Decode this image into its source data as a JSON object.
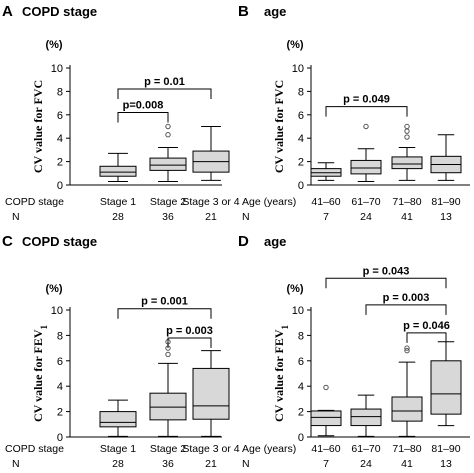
{
  "chart_data": [
    {
      "type": "box",
      "panel": "A",
      "title": "COPD stage",
      "unit": "(%)",
      "ylabel": "CV value for FVC",
      "ylim": [
        0,
        10
      ],
      "yticks": [
        0,
        2,
        4,
        6,
        8,
        10
      ],
      "row_labels": [
        "COPD stage",
        "N"
      ],
      "categories": [
        "Stage 1",
        "Stage  2",
        "Stage  3 or 4"
      ],
      "n": [
        "28",
        "36",
        "21"
      ],
      "boxes": [
        {
          "whislo": 0.3,
          "q1": 0.75,
          "med": 1.1,
          "q3": 1.6,
          "whishi": 2.7,
          "fliers": []
        },
        {
          "whislo": 0.3,
          "q1": 1.25,
          "med": 1.7,
          "q3": 2.3,
          "whishi": 3.2,
          "fliers": [
            4.3,
            5.0
          ]
        },
        {
          "whislo": 0.4,
          "q1": 1.1,
          "med": 2.0,
          "q3": 2.9,
          "whishi": 5.0,
          "fliers": []
        }
      ],
      "brackets": [
        {
          "from": 0,
          "to": 1,
          "value": 6.2,
          "label": "p=0.008"
        },
        {
          "from": 0,
          "to": 2,
          "value": 8.2,
          "label": "p = 0.01"
        }
      ]
    },
    {
      "type": "box",
      "panel": "B",
      "title": "age",
      "unit": "(%)",
      "ylabel": "CV value for FVC",
      "ylim": [
        0,
        10
      ],
      "yticks": [
        0,
        2,
        4,
        6,
        8,
        10
      ],
      "row_labels": [
        "Age (years)",
        "N"
      ],
      "categories": [
        "41–60",
        "61–70",
        "71–80",
        "81–90"
      ],
      "n": [
        "7",
        "24",
        "41",
        "13"
      ],
      "boxes": [
        {
          "whislo": 0.4,
          "q1": 0.75,
          "med": 1.05,
          "q3": 1.4,
          "whishi": 1.9,
          "fliers": []
        },
        {
          "whislo": 0.3,
          "q1": 0.95,
          "med": 1.45,
          "q3": 2.1,
          "whishi": 3.1,
          "fliers": [
            5.0
          ]
        },
        {
          "whislo": 0.4,
          "q1": 1.4,
          "med": 1.8,
          "q3": 2.4,
          "whishi": 3.2,
          "fliers": [
            4.1,
            4.6,
            5.0
          ]
        },
        {
          "whislo": 0.4,
          "q1": 1.05,
          "med": 1.75,
          "q3": 2.45,
          "whishi": 4.3,
          "fliers": []
        }
      ],
      "brackets": [
        {
          "from": 0,
          "to": 2,
          "value": 6.7,
          "label": "p = 0.049"
        }
      ]
    },
    {
      "type": "box",
      "panel": "C",
      "title": "COPD stage",
      "unit": "(%)",
      "ylabel": "CV value for FEV",
      "ylabel_sub": "1",
      "ylim": [
        0,
        10
      ],
      "yticks": [
        0,
        2,
        4,
        6,
        8,
        10
      ],
      "row_labels": [
        "COPD stage",
        "N"
      ],
      "categories": [
        "Stage 1",
        "Stage  2",
        "Stage  3 or 4"
      ],
      "n": [
        "28",
        "36",
        "21"
      ],
      "boxes": [
        {
          "whislo": 0.05,
          "q1": 0.8,
          "med": 1.15,
          "q3": 2.0,
          "whishi": 2.9,
          "fliers": []
        },
        {
          "whislo": 0.05,
          "q1": 1.35,
          "med": 2.35,
          "q3": 3.45,
          "whishi": 5.8,
          "fliers": [
            6.5,
            7.0,
            7.5
          ]
        },
        {
          "whislo": 0.05,
          "q1": 1.4,
          "med": 2.45,
          "q3": 5.4,
          "whishi": 6.8,
          "fliers": []
        }
      ],
      "brackets": [
        {
          "from": 1,
          "to": 2,
          "value": 7.8,
          "label": "p = 0.003"
        },
        {
          "from": 0,
          "to": 2,
          "value": 10.1,
          "label": "p = 0.001"
        }
      ]
    },
    {
      "type": "box",
      "panel": "D",
      "title": "age",
      "unit": "(%)",
      "ylabel": "CV value for FEV",
      "ylabel_sub": "1",
      "ylim": [
        0,
        10
      ],
      "yticks": [
        0,
        2,
        4,
        6,
        8,
        10
      ],
      "row_labels": [
        "Age (years)",
        "N"
      ],
      "categories": [
        "41–60",
        "61–70",
        "71–80",
        "81–90"
      ],
      "n": [
        "7",
        "24",
        "41",
        "13"
      ],
      "boxes": [
        {
          "whislo": 0.1,
          "q1": 0.9,
          "med": 1.55,
          "q3": 2.05,
          "whishi": 2.1,
          "fliers": [
            3.9
          ]
        },
        {
          "whislo": 0.05,
          "q1": 0.9,
          "med": 1.6,
          "q3": 2.2,
          "whishi": 3.3,
          "fliers": []
        },
        {
          "whislo": 0.05,
          "q1": 1.25,
          "med": 2.05,
          "q3": 3.15,
          "whishi": 5.9,
          "fliers": [
            6.8,
            7.0
          ]
        },
        {
          "whislo": 0.9,
          "q1": 1.8,
          "med": 3.4,
          "q3": 6.0,
          "whishi": 7.5,
          "fliers": []
        }
      ],
      "brackets": [
        {
          "from": 2,
          "to": 3,
          "value": 8.2,
          "label": "p = 0.046"
        },
        {
          "from": 1,
          "to": 3,
          "value": 10.4,
          "label": "p = 0.003"
        },
        {
          "from": 0,
          "to": 3,
          "value": 12.5,
          "label": "p = 0.043"
        }
      ]
    }
  ]
}
